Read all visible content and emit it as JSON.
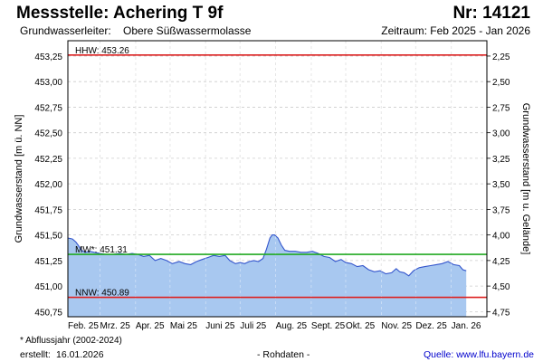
{
  "header": {
    "title": "Messstelle: Achering T 9f",
    "station_no": "Nr: 14121",
    "aquifer_label": "Grundwasserleiter:",
    "aquifer_value": "Obere Süßwassermolasse",
    "period": "Zeitraum: Feb 2025 - Jan 2026"
  },
  "footer": {
    "footnote": "* Abflussjahr (2002-2024)",
    "created_label": "erstellt:",
    "created_date": "16.01.2026",
    "raw_data": "- Rohdaten -",
    "source": "Quelle: www.lfu.bayern.de"
  },
  "colors": {
    "fill": "#a8c8f0",
    "line": "#3355cc",
    "hhw": "#dd2222",
    "nnw": "#dd2222",
    "mw": "#22aa22",
    "grid": "#cccccc"
  },
  "chart_data": {
    "type": "area",
    "title": "Messstelle: Achering T 9f",
    "ylabel": "Grundwasserstand [m ü. NN]",
    "y2label": "Grundwasserstand [m u. Gelände]",
    "ylim": [
      450.7,
      453.4
    ],
    "y2lim": [
      2.1,
      4.8
    ],
    "grid": true,
    "yticks": [
      450.75,
      451.0,
      451.25,
      451.5,
      451.75,
      452.0,
      452.25,
      452.5,
      452.75,
      453.0,
      453.25
    ],
    "ytick_labels": [
      "450,75",
      "451,00",
      "451,25",
      "451,50",
      "451,75",
      "452,00",
      "452,25",
      "452,50",
      "452,75",
      "453,00",
      "453,25"
    ],
    "y2ticks": [
      2.25,
      2.5,
      2.75,
      3.0,
      3.25,
      3.5,
      3.75,
      4.0,
      4.25,
      4.5,
      4.75
    ],
    "y2tick_labels": [
      "2,25",
      "2,50",
      "2,75",
      "3,00",
      "3,25",
      "3,50",
      "3,75",
      "4,00",
      "4,25",
      "4,50",
      "4,75"
    ],
    "xlim": [
      "2025-02-01",
      "2026-02-01"
    ],
    "xticks": [
      "2025-02-01",
      "2025-03-01",
      "2025-04-01",
      "2025-05-01",
      "2025-06-01",
      "2025-07-01",
      "2025-08-01",
      "2025-09-01",
      "2025-10-01",
      "2025-11-01",
      "2025-12-01",
      "2026-01-01",
      "2026-02-01"
    ],
    "xtick_labels": [
      "Feb. 25",
      "Mrz. 25",
      "Apr. 25",
      "Mai 25",
      "Juni 25",
      "Juli 25",
      "Aug. 25",
      "Sept. 25",
      "Okt. 25",
      "Nov. 25",
      "Dez. 25",
      "Jan. 26"
    ],
    "reference_lines": [
      {
        "label": "HHW: 453.26",
        "value": 453.26,
        "color": "#dd2222"
      },
      {
        "label": "MW*: 451.31",
        "value": 451.31,
        "color": "#22aa22"
      },
      {
        "label": "NNW: 450.89",
        "value": 450.89,
        "color": "#dd2222"
      }
    ],
    "series": [
      {
        "x": [
          "2025-02-01",
          "2025-02-05",
          "2025-02-08",
          "2025-02-10",
          "2025-02-13",
          "2025-02-16",
          "2025-02-20",
          "2025-02-24",
          "2025-03-01",
          "2025-03-06",
          "2025-03-12",
          "2025-03-18",
          "2025-03-24",
          "2025-03-29",
          "2025-04-03",
          "2025-04-08",
          "2025-04-13",
          "2025-04-18",
          "2025-04-23",
          "2025-04-28",
          "2025-05-03",
          "2025-05-09",
          "2025-05-14",
          "2025-05-19",
          "2025-05-24",
          "2025-05-29",
          "2025-06-03",
          "2025-06-08",
          "2025-06-13",
          "2025-06-18",
          "2025-06-22",
          "2025-06-27",
          "2025-07-01",
          "2025-07-05",
          "2025-07-09",
          "2025-07-13",
          "2025-07-17",
          "2025-07-21",
          "2025-07-24",
          "2025-07-27",
          "2025-07-29",
          "2025-07-31",
          "2025-08-03",
          "2025-08-06",
          "2025-08-09",
          "2025-08-13",
          "2025-08-18",
          "2025-08-23",
          "2025-08-28",
          "2025-09-02",
          "2025-09-07",
          "2025-09-12",
          "2025-09-17",
          "2025-09-22",
          "2025-09-27",
          "2025-10-01",
          "2025-10-06",
          "2025-10-11",
          "2025-10-16",
          "2025-10-21",
          "2025-10-26",
          "2025-10-31",
          "2025-11-05",
          "2025-11-10",
          "2025-11-14",
          "2025-11-17",
          "2025-11-21",
          "2025-11-25",
          "2025-11-29",
          "2025-12-04",
          "2025-12-09",
          "2025-12-14",
          "2025-12-19",
          "2025-12-24",
          "2025-12-29",
          "2026-01-03",
          "2026-01-08",
          "2026-01-11",
          "2026-01-14"
        ],
        "values": [
          451.47,
          451.46,
          451.43,
          451.4,
          451.35,
          451.33,
          451.34,
          451.33,
          451.32,
          451.31,
          451.31,
          451.32,
          451.31,
          451.32,
          451.31,
          451.29,
          451.3,
          451.25,
          451.27,
          451.25,
          451.22,
          451.24,
          451.22,
          451.21,
          451.24,
          451.26,
          451.28,
          451.3,
          451.29,
          451.3,
          451.25,
          451.22,
          451.23,
          451.22,
          451.24,
          451.25,
          451.24,
          451.27,
          451.36,
          451.47,
          451.5,
          451.5,
          451.47,
          451.4,
          451.35,
          451.34,
          451.34,
          451.33,
          451.33,
          451.34,
          451.32,
          451.29,
          451.28,
          451.24,
          451.26,
          451.23,
          451.22,
          451.19,
          451.2,
          451.16,
          451.14,
          451.15,
          451.12,
          451.13,
          451.17,
          451.14,
          451.13,
          451.1,
          451.15,
          451.18,
          451.19,
          451.2,
          451.21,
          451.22,
          451.24,
          451.21,
          451.2,
          451.16,
          451.15
        ]
      }
    ]
  }
}
